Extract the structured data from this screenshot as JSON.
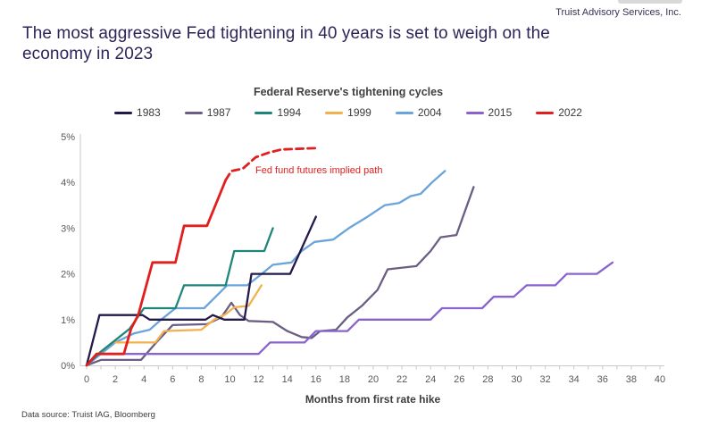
{
  "header": {
    "brand": "Truist Advisory Services, Inc.",
    "title_line1": "The most aggressive Fed tightening in 40 years is set to weigh on the",
    "title_line2": "economy in 2023"
  },
  "footer": {
    "source": "Data source: Truist IAG, Bloomberg"
  },
  "chart_data": {
    "type": "line",
    "title": "Federal Reserve's tightening cycles",
    "xlabel": "Months from first rate hike",
    "ylabel": "",
    "xlim": [
      0,
      40
    ],
    "ylim": [
      0,
      5
    ],
    "x_tick_step": 2,
    "y_ticks": [
      "0%",
      "1%",
      "2%",
      "3%",
      "4%",
      "5%"
    ],
    "grid": false,
    "legend_position": "top",
    "annotation": {
      "text": "Fed fund futures implied path",
      "color": "#e11f1f"
    },
    "series": [
      {
        "name": "1983",
        "color": "#23194b",
        "points": [
          [
            0,
            0
          ],
          [
            0.9,
            1.1
          ],
          [
            3.9,
            1.1
          ],
          [
            4.4,
            1.0
          ],
          [
            8.3,
            1.0
          ],
          [
            8.8,
            1.1
          ],
          [
            9.6,
            1.0
          ],
          [
            11.0,
            1.0
          ],
          [
            11.5,
            2.0
          ],
          [
            14.2,
            2.0
          ],
          [
            16,
            3.25
          ]
        ]
      },
      {
        "name": "1987",
        "color": "#6b5e85",
        "points": [
          [
            0,
            0
          ],
          [
            1,
            0.12
          ],
          [
            3.8,
            0.12
          ],
          [
            4.3,
            0.3
          ],
          [
            5,
            0.55
          ],
          [
            6,
            0.88
          ],
          [
            8.4,
            0.9
          ],
          [
            9.4,
            1.05
          ],
          [
            10.1,
            1.37
          ],
          [
            10.7,
            1.1
          ],
          [
            11.3,
            0.97
          ],
          [
            13,
            0.95
          ],
          [
            14,
            0.75
          ],
          [
            15,
            0.62
          ],
          [
            15.7,
            0.6
          ],
          [
            16.3,
            0.75
          ],
          [
            17.4,
            0.78
          ],
          [
            18.2,
            1.05
          ],
          [
            19.2,
            1.3
          ],
          [
            20.3,
            1.65
          ],
          [
            21,
            2.1
          ],
          [
            23,
            2.17
          ],
          [
            24,
            2.5
          ],
          [
            24.7,
            2.8
          ],
          [
            25.8,
            2.85
          ],
          [
            27,
            3.9
          ]
        ]
      },
      {
        "name": "1994",
        "color": "#1f857a",
        "points": [
          [
            0,
            0
          ],
          [
            1,
            0.3
          ],
          [
            2,
            0.55
          ],
          [
            3,
            0.8
          ],
          [
            4,
            1.25
          ],
          [
            6.2,
            1.25
          ],
          [
            6.8,
            1.75
          ],
          [
            9.7,
            1.75
          ],
          [
            10.3,
            2.5
          ],
          [
            12.4,
            2.5
          ],
          [
            13,
            3.0
          ]
        ]
      },
      {
        "name": "1999",
        "color": "#f2b04e",
        "points": [
          [
            0,
            0
          ],
          [
            0.8,
            0.25
          ],
          [
            1.8,
            0.5
          ],
          [
            4.8,
            0.5
          ],
          [
            5.4,
            0.75
          ],
          [
            8,
            0.78
          ],
          [
            8.9,
            1.0
          ],
          [
            9.7,
            1.12
          ],
          [
            10.3,
            1.27
          ],
          [
            11.3,
            1.3
          ],
          [
            12.2,
            1.75
          ]
        ]
      },
      {
        "name": "2004",
        "color": "#6aa4da",
        "points": [
          [
            0,
            0
          ],
          [
            1,
            0.25
          ],
          [
            2,
            0.5
          ],
          [
            3.3,
            0.7
          ],
          [
            4.4,
            0.78
          ],
          [
            5.2,
            1.0
          ],
          [
            6.2,
            1.25
          ],
          [
            8.2,
            1.25
          ],
          [
            9,
            1.5
          ],
          [
            9.8,
            1.75
          ],
          [
            11.2,
            1.75
          ],
          [
            12.1,
            1.97
          ],
          [
            13,
            2.2
          ],
          [
            14.3,
            2.25
          ],
          [
            15,
            2.5
          ],
          [
            15.9,
            2.7
          ],
          [
            17.2,
            2.75
          ],
          [
            18.3,
            3.0
          ],
          [
            19.6,
            3.25
          ],
          [
            20.8,
            3.5
          ],
          [
            21.8,
            3.55
          ],
          [
            22.6,
            3.7
          ],
          [
            23.3,
            3.75
          ],
          [
            24.1,
            4.0
          ],
          [
            25,
            4.25
          ]
        ]
      },
      {
        "name": "2015",
        "color": "#8a63cc",
        "points": [
          [
            0,
            0
          ],
          [
            0.8,
            0.25
          ],
          [
            12,
            0.25
          ],
          [
            12.8,
            0.5
          ],
          [
            15.2,
            0.5
          ],
          [
            16,
            0.75
          ],
          [
            18.2,
            0.75
          ],
          [
            19,
            1.0
          ],
          [
            24,
            1.0
          ],
          [
            24.8,
            1.25
          ],
          [
            27.6,
            1.25
          ],
          [
            28.4,
            1.5
          ],
          [
            29.8,
            1.5
          ],
          [
            30.7,
            1.75
          ],
          [
            32.7,
            1.75
          ],
          [
            33.5,
            2.0
          ],
          [
            35.6,
            2.0
          ],
          [
            36.7,
            2.25
          ]
        ]
      },
      {
        "name": "2022",
        "color": "#e11f1f",
        "stroke_width": 2.8,
        "points": [
          [
            0,
            0
          ],
          [
            0.7,
            0.25
          ],
          [
            2.6,
            0.25
          ],
          [
            3.1,
            0.8
          ],
          [
            3.6,
            1.1
          ],
          [
            4.6,
            2.25
          ],
          [
            6.2,
            2.25
          ],
          [
            6.8,
            3.05
          ],
          [
            8.4,
            3.05
          ],
          [
            9.7,
            4.05
          ]
        ],
        "dashed_points": [
          [
            9.7,
            4.05
          ],
          [
            10.1,
            4.25
          ],
          [
            10.9,
            4.3
          ],
          [
            11.8,
            4.55
          ],
          [
            12.7,
            4.65
          ],
          [
            13.6,
            4.72
          ],
          [
            16,
            4.75
          ]
        ]
      }
    ]
  }
}
